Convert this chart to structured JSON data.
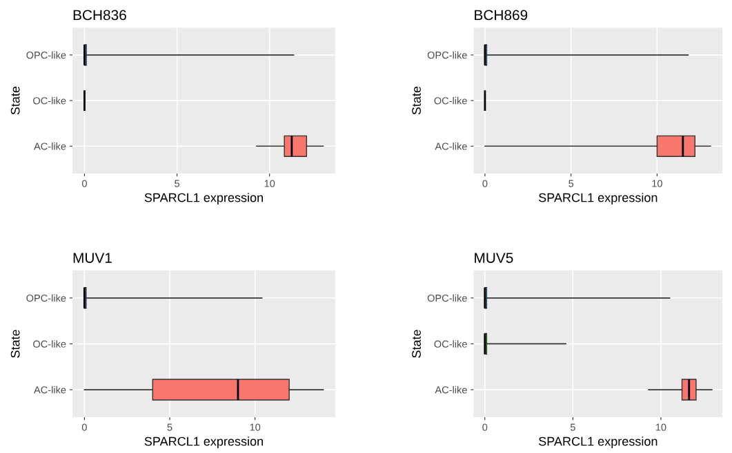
{
  "chart_data": [
    {
      "type": "box",
      "title": "BCH836",
      "xlabel": "SPARCL1 expression",
      "ylabel": "State",
      "orientation": "horizontal",
      "categories": [
        "OPC-like",
        "OC-like",
        "AC-like"
      ],
      "colors": [
        "#619cff",
        "#333333",
        "#f8766d"
      ],
      "boxes": [
        {
          "low": 0,
          "q1": 0,
          "median": 0,
          "q3": 0.1,
          "high": 11.3
        },
        {
          "low": 0,
          "q1": 0,
          "median": 0,
          "q3": 0,
          "high": 0
        },
        {
          "low": 9.3,
          "q1": 10.8,
          "median": 11.2,
          "q3": 12.0,
          "high": 12.9
        }
      ],
      "xlim": [
        -0.65,
        13.55
      ],
      "xticks": [
        0,
        5,
        10
      ],
      "grid": true
    },
    {
      "type": "box",
      "title": "BCH869",
      "xlabel": "SPARCL1 expression",
      "ylabel": "State",
      "orientation": "horizontal",
      "categories": [
        "OPC-like",
        "OC-like",
        "AC-like"
      ],
      "colors": [
        "#619cff",
        "#333333",
        "#f8766d"
      ],
      "boxes": [
        {
          "low": 0,
          "q1": 0,
          "median": 0,
          "q3": 0.1,
          "high": 11.8
        },
        {
          "low": 0,
          "q1": 0,
          "median": 0,
          "q3": 0,
          "high": 0
        },
        {
          "low": 0,
          "q1": 10.0,
          "median": 11.5,
          "q3": 12.2,
          "high": 13.1
        }
      ],
      "xlim": [
        -0.66,
        13.8
      ],
      "xticks": [
        0,
        5,
        10
      ],
      "grid": true
    },
    {
      "type": "box",
      "title": "MUV1",
      "xlabel": "SPARCL1 expression",
      "ylabel": "State",
      "orientation": "horizontal",
      "categories": [
        "OPC-like",
        "OC-like",
        "AC-like"
      ],
      "colors": [
        "#619cff",
        "#00ba38",
        "#f8766d"
      ],
      "boxes": [
        {
          "low": 0,
          "q1": 0,
          "median": 0,
          "q3": 0.1,
          "high": 10.4
        },
        null,
        {
          "low": 0,
          "q1": 4,
          "median": 9,
          "q3": 12,
          "high": 14
        }
      ],
      "xlim": [
        -0.7,
        14.7
      ],
      "xticks": [
        0,
        5,
        10
      ],
      "grid": true
    },
    {
      "type": "box",
      "title": "MUV5",
      "xlabel": "SPARCL1 expression",
      "ylabel": "State",
      "orientation": "horizontal",
      "categories": [
        "OPC-like",
        "OC-like",
        "AC-like"
      ],
      "colors": [
        "#619cff",
        "#4fb82f",
        "#f8766d"
      ],
      "boxes": [
        {
          "low": 0,
          "q1": 0,
          "median": 0,
          "q3": 0.1,
          "high": 10.5
        },
        {
          "low": 0,
          "q1": 0,
          "median": 0,
          "q3": 0.1,
          "high": 4.6
        },
        {
          "low": 9.3,
          "q1": 11.2,
          "median": 11.6,
          "q3": 12.0,
          "high": 12.9
        }
      ],
      "xlim": [
        -0.64,
        13.5
      ],
      "xticks": [
        0,
        5,
        10
      ],
      "grid": true
    }
  ]
}
